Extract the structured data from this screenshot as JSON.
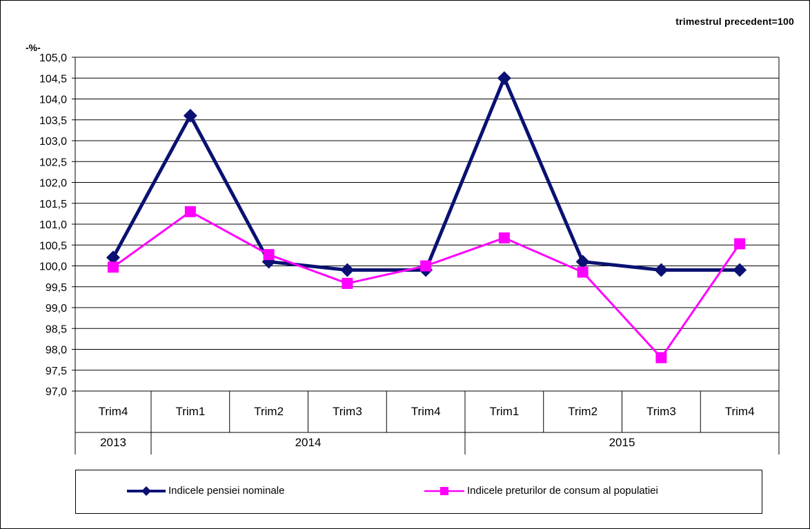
{
  "chart_data": {
    "type": "line",
    "note": "trimestrul precedent=100",
    "unit_label": "-%-",
    "categories": [
      "Trim4",
      "Trim1",
      "Trim2",
      "Trim3",
      "Trim4",
      "Trim1",
      "Trim2",
      "Trim3",
      "Trim4"
    ],
    "year_groups": [
      {
        "label": "2013",
        "start": 0,
        "end": 0
      },
      {
        "label": "2014",
        "start": 1,
        "end": 4
      },
      {
        "label": "2015",
        "start": 5,
        "end": 8
      }
    ],
    "ylim": [
      97.0,
      105.0
    ],
    "y_ticks": [
      "97,0",
      "97,5",
      "98,0",
      "98,5",
      "99,0",
      "99,5",
      "100,0",
      "100,5",
      "101,0",
      "101,5",
      "102,0",
      "102,5",
      "103,0",
      "103,5",
      "104,0",
      "104,5",
      "105,0"
    ],
    "grid": true,
    "legend_position": "bottom",
    "series": [
      {
        "name": "Indicele pensiei nominale",
        "color": "#0a1172",
        "marker": "diamond",
        "values": [
          100.2,
          103.6,
          100.1,
          99.9,
          99.9,
          104.5,
          100.1,
          99.9,
          99.9
        ]
      },
      {
        "name": "Indicele preturilor de consum al populatiei",
        "color": "#ff00ff",
        "marker": "square",
        "values": [
          99.97,
          101.3,
          100.27,
          99.58,
          100.0,
          100.67,
          99.85,
          97.8,
          100.53
        ]
      }
    ]
  }
}
